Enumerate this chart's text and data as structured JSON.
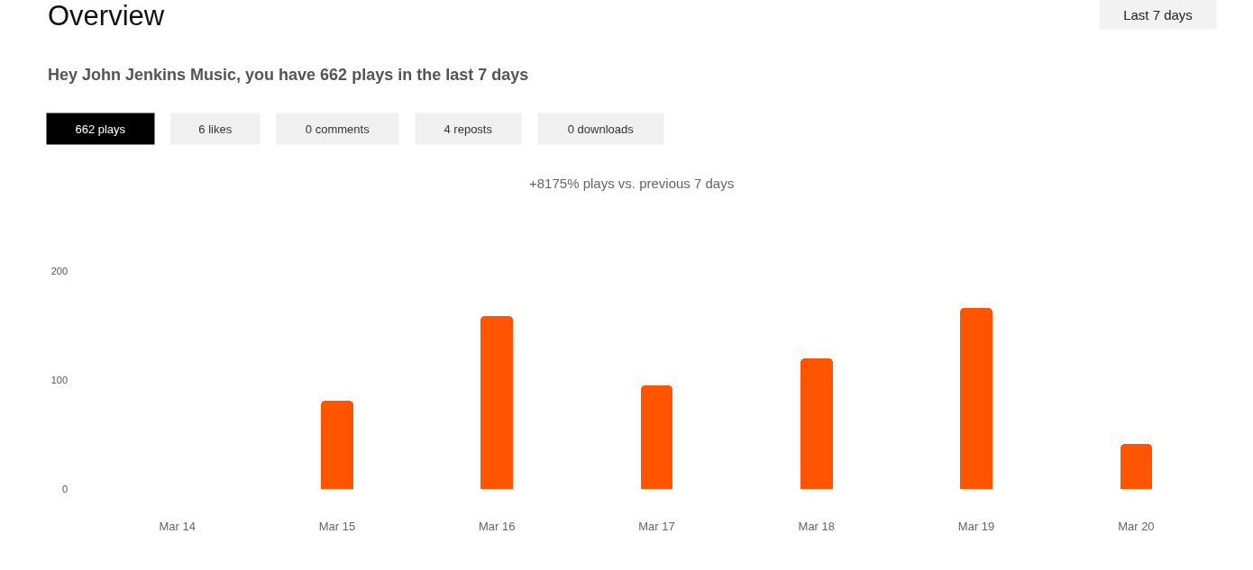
{
  "chart_data": {
    "type": "bar",
    "title": "Overview",
    "subtitle": "Hey John Jenkins Music, you have 662 plays in the last 7 days",
    "annotations": [
      "Last 7 days",
      "662 plays",
      "6 likes",
      "0 comments",
      "4 reposts",
      "0 downloads",
      "+8175% plays vs. previous 7 days"
    ],
    "categories": [
      "Mar 14",
      "Mar 15",
      "Mar 16",
      "Mar 17",
      "Mar 18",
      "Mar 19",
      "Mar 20"
    ],
    "values": [
      0,
      81,
      159,
      95,
      120,
      166,
      41
    ],
    "color": "#ff5500",
    "ylim": [
      0,
      200
    ],
    "yticks": [
      0,
      100,
      200
    ]
  }
}
